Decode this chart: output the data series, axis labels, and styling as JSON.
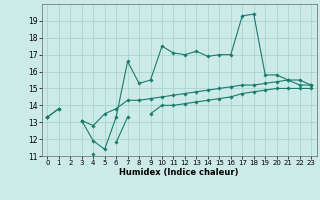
{
  "xlabel": "Humidex (Indice chaleur)",
  "background_color": "#cceae7",
  "line_color": "#1a7a6e",
  "grid_color": "#aad4d0",
  "x_values": [
    0,
    1,
    2,
    3,
    4,
    5,
    6,
    7,
    8,
    9,
    10,
    11,
    12,
    13,
    14,
    15,
    16,
    17,
    18,
    19,
    20,
    21,
    22,
    23
  ],
  "line_max": [
    13.3,
    13.8,
    null,
    13.1,
    11.9,
    11.4,
    13.3,
    16.6,
    15.3,
    15.5,
    17.5,
    17.1,
    17.0,
    17.2,
    16.9,
    17.0,
    17.0,
    19.3,
    19.4,
    15.8,
    15.8,
    15.5,
    15.2,
    15.2
  ],
  "line_mean": [
    13.3,
    13.8,
    null,
    13.1,
    12.8,
    13.5,
    13.8,
    14.3,
    14.3,
    14.4,
    14.5,
    14.6,
    14.7,
    14.8,
    14.9,
    15.0,
    15.1,
    15.2,
    15.2,
    15.3,
    15.4,
    15.5,
    15.5,
    15.2
  ],
  "line_min": [
    13.3,
    null,
    null,
    null,
    11.1,
    null,
    11.8,
    13.3,
    null,
    13.5,
    14.0,
    14.0,
    14.1,
    14.2,
    14.3,
    14.4,
    14.5,
    14.7,
    14.8,
    14.9,
    15.0,
    15.0,
    15.0,
    15.0
  ],
  "ylim": [
    11,
    20
  ],
  "xlim": [
    -0.5,
    23.5
  ],
  "yticks": [
    11,
    12,
    13,
    14,
    15,
    16,
    17,
    18,
    19
  ],
  "xticks": [
    0,
    1,
    2,
    3,
    4,
    5,
    6,
    7,
    8,
    9,
    10,
    11,
    12,
    13,
    14,
    15,
    16,
    17,
    18,
    19,
    20,
    21,
    22,
    23
  ]
}
